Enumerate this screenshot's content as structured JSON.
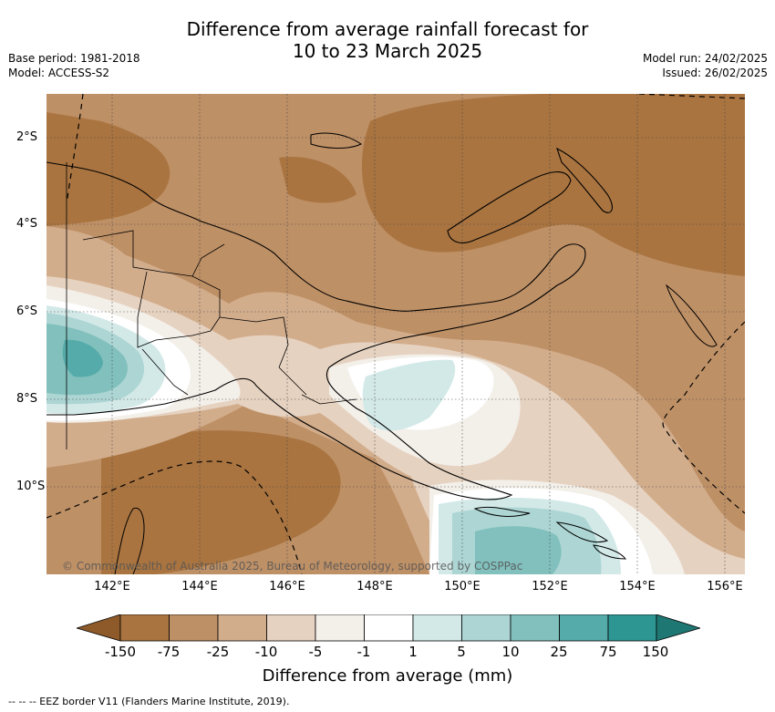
{
  "header": {
    "title_line1": "Difference from average rainfall forecast for",
    "title_line2": "10 to 23 March 2025",
    "base_period": "Base period: 1981-2018",
    "model": "Model: ACCESS-S2",
    "model_run": "Model run: 24/02/2025",
    "issued": "Issued: 26/02/2025"
  },
  "map": {
    "lat_labels": [
      "2°S",
      "4°S",
      "6°S",
      "8°S",
      "10°S"
    ],
    "lon_labels": [
      "142°E",
      "144°E",
      "146°E",
      "148°E",
      "150°E",
      "152°E",
      "154°E",
      "156°E"
    ],
    "copyright": "© Commonwealth of Australia 2025, Bureau of Meteorology, supported by COSPPac",
    "colors": {
      "lt_-75": "#a97440",
      "-75_-25": "#be9066",
      "-25_-10": "#d2ad8c",
      "-10_-5": "#e6d2c0",
      "-5_-1": "#f3efe9",
      "-1_1": "#ffffff",
      "1_5": "#d3e9e8",
      "5_10": "#acd5d3",
      "10_25": "#81c0bd",
      "25_75": "#55aba9",
      "gt_75": "#2e9692"
    }
  },
  "colorbar": {
    "ticks": [
      "-150",
      "-75",
      "-25",
      "-10",
      "-5",
      "-1",
      "1",
      "5",
      "10",
      "25",
      "75",
      "150"
    ],
    "title": "Difference from average (mm)"
  },
  "legend": {
    "eez": "-- -- -- EEZ border V11 (Flanders Marine Institute, 2019)."
  }
}
